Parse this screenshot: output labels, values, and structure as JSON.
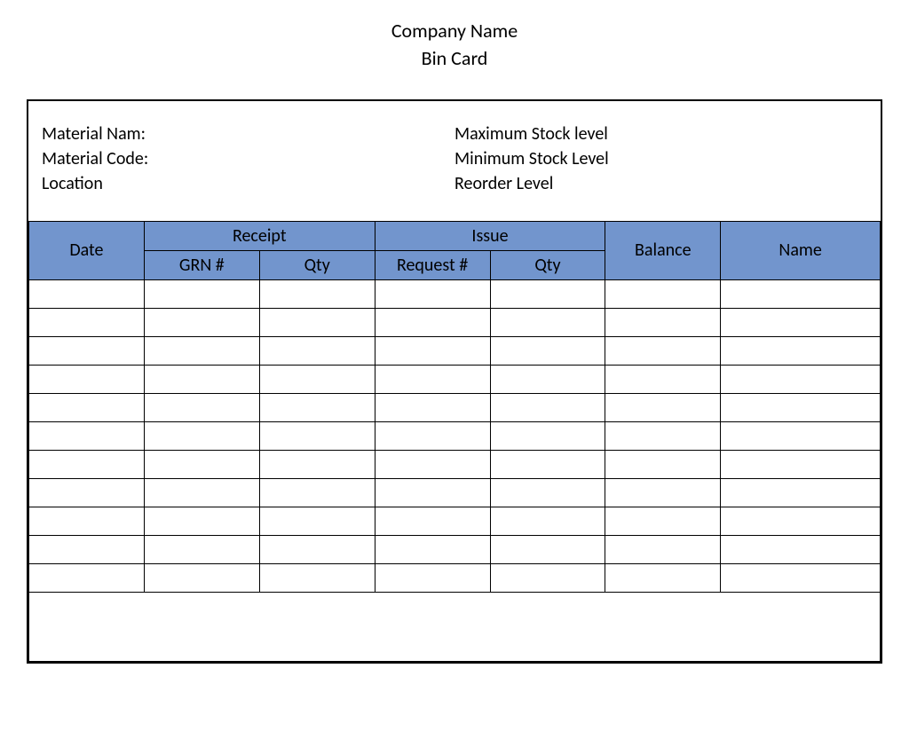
{
  "header": {
    "company_line": "Company Name",
    "doc_title": "Bin Card"
  },
  "info": {
    "left": {
      "material_name_label": "Material Nam:",
      "material_code_label": "Material Code:",
      "location_label": "Location"
    },
    "right": {
      "max_stock_label": "Maximum Stock level",
      "min_stock_label": "Minimum Stock Level",
      "reorder_label": "Reorder Level"
    }
  },
  "table": {
    "columns": {
      "date": "Date",
      "receipt": "Receipt",
      "issue": "Issue",
      "balance": "Balance",
      "name": "Name",
      "grn": "GRN #",
      "receipt_qty": "Qty",
      "request": "Request #",
      "issue_qty": "Qty"
    },
    "header_bg_color": "#7295cd",
    "border_color": "#000000",
    "row_count": 11,
    "column_widths_pct": [
      12.5,
      12.5,
      12.5,
      12.5,
      12.5,
      12.5,
      17.3
    ],
    "rows": [
      [
        "",
        "",
        "",
        "",
        "",
        "",
        ""
      ],
      [
        "",
        "",
        "",
        "",
        "",
        "",
        ""
      ],
      [
        "",
        "",
        "",
        "",
        "",
        "",
        ""
      ],
      [
        "",
        "",
        "",
        "",
        "",
        "",
        ""
      ],
      [
        "",
        "",
        "",
        "",
        "",
        "",
        ""
      ],
      [
        "",
        "",
        "",
        "",
        "",
        "",
        ""
      ],
      [
        "",
        "",
        "",
        "",
        "",
        "",
        ""
      ],
      [
        "",
        "",
        "",
        "",
        "",
        "",
        ""
      ],
      [
        "",
        "",
        "",
        "",
        "",
        "",
        ""
      ],
      [
        "",
        "",
        "",
        "",
        "",
        "",
        ""
      ],
      [
        "",
        "",
        "",
        "",
        "",
        "",
        ""
      ]
    ]
  },
  "style": {
    "page_bg": "#ffffff",
    "text_color": "#000000",
    "title_fontsize": 22,
    "label_fontsize": 20,
    "th_fontsize": 20,
    "font_family": "Calibri"
  }
}
